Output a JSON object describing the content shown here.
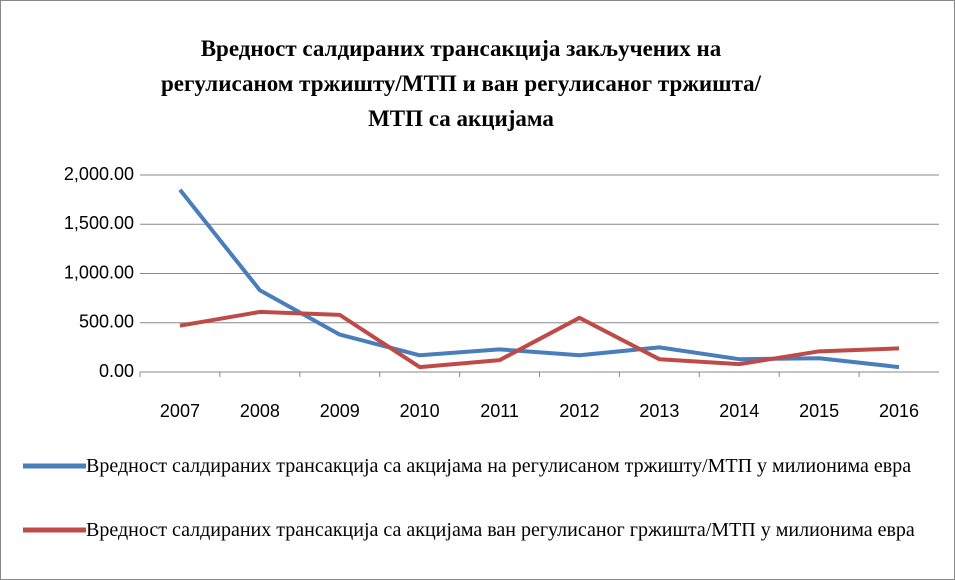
{
  "chart_data": {
    "type": "line",
    "title": "Вредност салдираних трансакција закључених на регулисаном тржишту/МТП  и ван регулисаног тржишта/МТП са акцијама",
    "categories": [
      "2007",
      "2008",
      "2009",
      "2010",
      "2011",
      "2012",
      "2013",
      "2014",
      "2015",
      "2016"
    ],
    "series": [
      {
        "name": "Вредност салдираних  трансакција са акцијама на регулисаном  тржишту/МТП у милионима евра",
        "color": "#4a7ebb",
        "values": [
          1850,
          830,
          380,
          170,
          230,
          170,
          250,
          130,
          140,
          50
        ]
      },
      {
        "name": "Вредност салдираних  трансакција са акцијама ван регулисаног  гржишта/МТП у милионима евра",
        "color": "#be4b48",
        "values": [
          470,
          610,
          580,
          50,
          120,
          550,
          130,
          80,
          210,
          240
        ]
      }
    ],
    "ylim": [
      0,
      2000
    ],
    "yticks": [
      {
        "value": 0,
        "label": "0.00"
      },
      {
        "value": 500,
        "label": "500.00"
      },
      {
        "value": 1000,
        "label": "1,000.00"
      },
      {
        "value": 1500,
        "label": "1,500.00"
      },
      {
        "value": 2000,
        "label": "2,000.00"
      }
    ],
    "grid": true,
    "legend": "bottom"
  }
}
